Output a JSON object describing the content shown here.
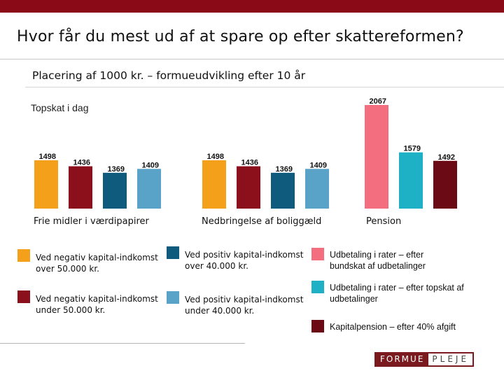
{
  "header": {
    "title": "Hvor får du mest ud af at spare op efter skattereformen?",
    "subtitle": "Placering af 1000 kr. – formueudvikling efter 10 år",
    "reference_label": "Topskat i dag"
  },
  "colors": {
    "brand": "#8b0a17",
    "orange": "#f5a01a",
    "dark_red": "#8c0f1c",
    "dark_blue": "#0f5b7d",
    "light_blue": "#5aa3c8",
    "pink": "#f36f80",
    "teal": "#1eb0c4",
    "maroon": "#6b0a14"
  },
  "chart_data": {
    "type": "bar",
    "groups": [
      {
        "label": "Frie midler i værdipapirer",
        "bars": [
          {
            "value": 1498,
            "color": "#f5a01a"
          },
          {
            "value": 1436,
            "color": "#8c0f1c"
          },
          {
            "value": 1369,
            "color": "#0f5b7d"
          },
          {
            "value": 1409,
            "color": "#5aa3c8"
          }
        ]
      },
      {
        "label": "Nedbringelse af boliggæld",
        "bars": [
          {
            "value": 1498,
            "color": "#f5a01a"
          },
          {
            "value": 1436,
            "color": "#8c0f1c"
          },
          {
            "value": 1369,
            "color": "#0f5b7d"
          },
          {
            "value": 1409,
            "color": "#5aa3c8"
          }
        ]
      },
      {
        "label": "Pension",
        "bars": [
          {
            "value": 2067,
            "color": "#f36f80"
          },
          {
            "value": 1579,
            "color": "#1eb0c4"
          },
          {
            "value": 1492,
            "color": "#6b0a14"
          }
        ]
      }
    ],
    "ylim": [
      1000,
      2067
    ],
    "grid": false
  },
  "legend": [
    {
      "text": "Ved negativ kapital-indkomst over 50.000 kr.",
      "color": "#f5a01a"
    },
    {
      "text": "Ved negativ kapital-indkomst under 50.000 kr.",
      "color": "#8c0f1c"
    },
    {
      "text": "Ved positiv kapital-indkomst over 40.000 kr.",
      "color": "#0f5b7d"
    },
    {
      "text": "Ved positiv kapital-indkomst under 40.000 kr.",
      "color": "#5aa3c8"
    },
    {
      "text": "Udbetaling i rater – efter bundskat af udbetalinger",
      "color": "#f36f80"
    },
    {
      "text": "Udbetaling i rater – efter topskat af udbetalinger",
      "color": "#1eb0c4"
    },
    {
      "text": "Kapitalpension – efter 40% afgift",
      "color": "#6b0a14"
    }
  ],
  "logo": {
    "part1": "FORMUE",
    "part2": "PLEJE"
  }
}
